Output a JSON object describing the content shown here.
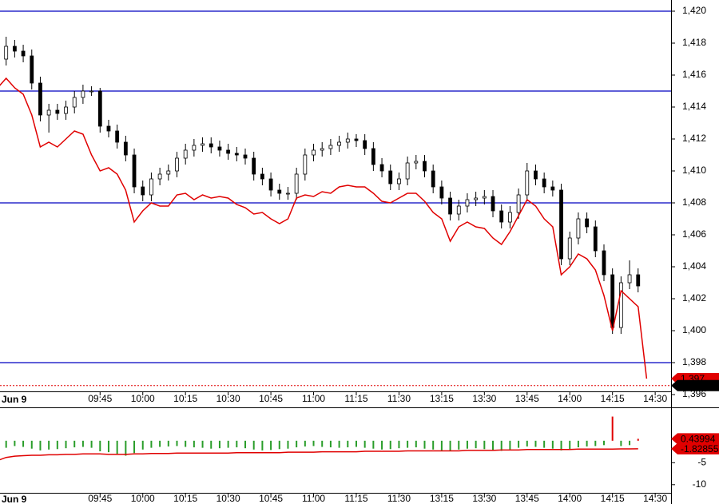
{
  "chart_data": [
    {
      "type": "candlestick",
      "date": "Jun 9",
      "categories": [
        null,
        null,
        null,
        null,
        null,
        null,
        null,
        null,
        null,
        null,
        null,
        null,
        "09:45",
        null,
        null,
        null,
        null,
        "10:00",
        null,
        null,
        null,
        null,
        "10:15",
        null,
        null,
        null,
        null,
        "10:30",
        null,
        null,
        null,
        null,
        "10:45",
        null,
        null,
        null,
        null,
        "11:00",
        null,
        null,
        null,
        null,
        "11:15",
        null,
        null,
        null,
        null,
        "11:30",
        null,
        null,
        null,
        null,
        "13:15",
        null,
        null,
        null,
        null,
        "13:30",
        null,
        null,
        null,
        null,
        "13:45",
        null,
        null,
        null,
        null,
        "14:00",
        null,
        null,
        null,
        null,
        "14:15",
        null,
        null,
        null,
        null,
        "14:30"
      ],
      "open": [
        1416.8,
        1417.0,
        1417.8,
        1417.5,
        1417.2,
        1415.5,
        1413.5,
        1413.8,
        1413.6,
        1414.0,
        1414.6,
        1415.0,
        1415.0,
        1412.8,
        1412.5,
        1411.8,
        1411.0,
        1409.0,
        1408.5,
        1409.5,
        1409.8,
        1410.0,
        1410.8,
        1411.3,
        1411.6,
        1411.7,
        1411.5,
        1411.3,
        1411.1,
        1411.0,
        1410.8,
        1409.8,
        1409.5,
        1408.8,
        1408.6,
        1408.6,
        1409.8,
        1411.0,
        1411.3,
        1411.4,
        1411.6,
        1411.8,
        1412.0,
        1411.9,
        1411.4,
        1410.4,
        1410.0,
        1409.2,
        1409.5,
        1410.5,
        1410.6,
        1410.0,
        1409.0,
        1408.3,
        1407.3,
        1407.8,
        1408.2,
        1408.3,
        1408.4,
        1407.5,
        1406.8,
        1407.4,
        1408.5,
        1410.0,
        1409.5,
        1409.0,
        1408.8,
        1404.5,
        1405.8,
        1407.0,
        1406.5,
        1405.0,
        1403.5,
        1400.2,
        1403.0,
        1403.5,
        null,
        null
      ],
      "high": [
        1417.6,
        1418.4,
        1418.2,
        1417.9,
        1417.6,
        1415.9,
        1414.2,
        1414.2,
        1414.4,
        1415.0,
        1415.4,
        1415.3,
        1415.2,
        1413.2,
        1412.9,
        1412.2,
        1411.4,
        1409.4,
        1409.9,
        1410.2,
        1410.4,
        1411.2,
        1411.7,
        1412.0,
        1412.1,
        1412.1,
        1411.9,
        1411.7,
        1411.5,
        1411.4,
        1411.2,
        1410.2,
        1409.9,
        1409.2,
        1409.0,
        1410.2,
        1411.4,
        1411.7,
        1411.8,
        1412.0,
        1412.2,
        1412.4,
        1412.3,
        1412.3,
        1411.8,
        1410.8,
        1410.4,
        1409.9,
        1410.9,
        1411.0,
        1411.0,
        1410.4,
        1409.4,
        1408.7,
        1408.2,
        1408.6,
        1408.7,
        1408.8,
        1408.8,
        1407.9,
        1407.8,
        1408.9,
        1410.5,
        1410.4,
        1409.9,
        1409.4,
        1409.2,
        1406.2,
        1407.4,
        1407.4,
        1406.9,
        1405.4,
        1403.9,
        1403.4,
        1404.4,
        1403.9,
        null,
        null
      ],
      "low": [
        1416.4,
        1416.6,
        1417.1,
        1416.8,
        1415.1,
        1413.1,
        1412.4,
        1413.2,
        1413.2,
        1413.6,
        1414.2,
        1414.7,
        1412.4,
        1412.1,
        1411.4,
        1410.6,
        1408.6,
        1408.1,
        1408.1,
        1409.1,
        1409.4,
        1409.6,
        1410.4,
        1410.9,
        1411.2,
        1411.1,
        1410.9,
        1410.7,
        1410.6,
        1410.4,
        1409.4,
        1409.1,
        1408.4,
        1408.2,
        1408.2,
        1408.2,
        1409.4,
        1410.6,
        1410.9,
        1411.0,
        1411.2,
        1411.4,
        1411.5,
        1411.0,
        1410.0,
        1409.6,
        1408.8,
        1408.8,
        1409.1,
        1410.1,
        1409.6,
        1408.6,
        1407.9,
        1406.9,
        1406.9,
        1407.4,
        1407.8,
        1407.9,
        1407.1,
        1406.4,
        1406.4,
        1407.0,
        1408.1,
        1409.1,
        1408.6,
        1408.4,
        1404.1,
        1404.1,
        1405.4,
        1406.1,
        1404.6,
        1403.1,
        1399.8,
        1399.8,
        1402.6,
        1402.4,
        null,
        null
      ],
      "close": [
        1417.0,
        1417.8,
        1417.5,
        1417.2,
        1415.5,
        1413.5,
        1413.8,
        1413.6,
        1414.0,
        1414.6,
        1415.0,
        1415.0,
        1412.8,
        1412.5,
        1411.8,
        1411.0,
        1409.0,
        1408.5,
        1409.5,
        1409.8,
        1410.0,
        1410.8,
        1411.3,
        1411.6,
        1411.7,
        1411.5,
        1411.3,
        1411.1,
        1411.0,
        1410.8,
        1409.8,
        1409.5,
        1408.8,
        1408.6,
        1408.6,
        1409.8,
        1411.0,
        1411.3,
        1411.4,
        1411.6,
        1411.8,
        1412.0,
        1411.9,
        1411.4,
        1410.4,
        1410.0,
        1409.2,
        1409.5,
        1410.5,
        1410.6,
        1410.0,
        1409.0,
        1408.3,
        1407.3,
        1407.8,
        1408.2,
        1408.3,
        1408.4,
        1407.5,
        1406.8,
        1407.4,
        1408.5,
        1410.0,
        1409.5,
        1409.0,
        1408.8,
        1404.5,
        1405.8,
        1407.0,
        1406.5,
        1405.0,
        1403.5,
        1400.2,
        1403.0,
        1403.5,
        1402.8,
        null,
        null
      ],
      "up_color": "#ffffff",
      "down_color": "#000000",
      "outline_color": "#000000",
      "series": [
        {
          "color": "#e00000",
          "values": [
            1415.2,
            1415.8,
            1415.2,
            1414.8,
            1413.5,
            1411.5,
            1411.8,
            1411.5,
            1412.0,
            1412.5,
            1412.3,
            1411.0,
            1410.0,
            1410.2,
            1409.8,
            1408.8,
            1406.8,
            1407.5,
            1408.0,
            1407.8,
            1407.8,
            1408.5,
            1408.6,
            1408.2,
            1408.5,
            1408.3,
            1408.4,
            1408.3,
            1407.9,
            1407.7,
            1407.3,
            1407.4,
            1407.0,
            1406.7,
            1407.0,
            1408.3,
            1408.5,
            1408.4,
            1408.7,
            1408.6,
            1409.0,
            1409.1,
            1409.0,
            1409.0,
            1408.6,
            1408.1,
            1408.0,
            1408.3,
            1408.6,
            1408.6,
            1408.1,
            1407.4,
            1407.0,
            1405.6,
            1406.5,
            1406.8,
            1406.5,
            1406.4,
            1405.8,
            1405.4,
            1406.2,
            1407.2,
            1408.2,
            1407.8,
            1407.0,
            1406.5,
            1403.5,
            1404.0,
            1404.8,
            1404.5,
            1403.8,
            1402.2,
            1400.0,
            1402.5,
            1402.0,
            1401.5,
            1397.0,
            null
          ]
        }
      ],
      "hlines": [
        1420,
        1415,
        1408,
        1398
      ],
      "hline_color": "#0000c0",
      "tags": [
        {
          "value": 1397,
          "label": "1,397",
          "color": "#e00000"
        },
        {
          "value": 1396.56,
          "label": "1,396.56",
          "color": "#000000"
        }
      ],
      "ylim": [
        1396.2,
        1420.7
      ],
      "yticks": [
        {
          "value": 1420,
          "label": "1,420"
        },
        {
          "value": 1418,
          "label": "1,418"
        },
        {
          "value": 1416,
          "label": "1,416"
        },
        {
          "value": 1414,
          "label": "1,414"
        },
        {
          "value": 1412,
          "label": "1,412"
        },
        {
          "value": 1410,
          "label": "1,410"
        },
        {
          "value": 1408,
          "label": "1,408"
        },
        {
          "value": 1406,
          "label": "1,406"
        },
        {
          "value": 1404,
          "label": "1,404"
        },
        {
          "value": 1402,
          "label": "1,402"
        },
        {
          "value": 1400,
          "label": "1,400"
        },
        {
          "value": 1398,
          "label": "1,398"
        },
        {
          "value": 1396,
          "label": "1,396"
        }
      ]
    },
    {
      "type": "bar",
      "values": [
        -1.5,
        -1.6,
        -1.2,
        -1.4,
        -1.8,
        -2.2,
        -2.0,
        -1.9,
        -1.7,
        -1.5,
        -1.4,
        -1.6,
        -2.4,
        -2.6,
        -3.0,
        -3.4,
        -2.8,
        -2.0,
        -1.6,
        -1.4,
        -1.3,
        -1.2,
        -1.4,
        -1.5,
        -1.6,
        -1.8,
        -1.7,
        -1.6,
        -1.5,
        -1.7,
        -2.0,
        -2.2,
        -2.1,
        -1.9,
        -1.8,
        -1.5,
        -1.3,
        -1.2,
        -1.4,
        -1.5,
        -1.6,
        -1.5,
        -1.4,
        -1.6,
        -1.8,
        -2.0,
        -1.9,
        -1.7,
        -1.6,
        -1.5,
        -1.8,
        -2.0,
        -2.2,
        -2.4,
        -2.0,
        -1.8,
        -1.7,
        -1.9,
        -2.1,
        -2.3,
        -2.0,
        -1.6,
        -1.3,
        -1.4,
        -1.6,
        -1.8,
        -2.2,
        -1.9,
        -1.5,
        -1.3,
        -1.2,
        -1.0,
        5.5,
        -1.2,
        -1.0,
        0.43994,
        null,
        null
      ],
      "positive_color": "#e00000",
      "negative_color": "#2a9d2a",
      "series": [
        {
          "color": "#e00000",
          "values": [
            -4.5,
            -3.8,
            -3.5,
            -3.4,
            -3.3,
            -3.3,
            -3.2,
            -3.2,
            -3.1,
            -3.1,
            -3.0,
            -3.0,
            -3.0,
            -3.1,
            -3.1,
            -3.1,
            -3.0,
            -3.0,
            -2.9,
            -2.9,
            -2.9,
            -2.8,
            -2.8,
            -2.8,
            -2.8,
            -2.8,
            -2.8,
            -2.8,
            -2.7,
            -2.7,
            -2.7,
            -2.7,
            -2.7,
            -2.7,
            -2.6,
            -2.6,
            -2.6,
            -2.6,
            -2.5,
            -2.5,
            -2.5,
            -2.5,
            -2.5,
            -2.4,
            -2.4,
            -2.4,
            -2.4,
            -2.4,
            -2.3,
            -2.3,
            -2.3,
            -2.3,
            -2.3,
            -2.3,
            -2.3,
            -2.2,
            -2.2,
            -2.2,
            -2.2,
            -2.1,
            -2.1,
            -2.1,
            -2.0,
            -2.0,
            -2.0,
            -2.0,
            -2.0,
            -2.0,
            -1.9,
            -1.9,
            -1.9,
            -1.9,
            -1.9,
            -1.85,
            -1.85,
            -1.82855,
            null,
            null
          ]
        }
      ],
      "tags": [
        {
          "value": 0.43994,
          "label": "0.43994",
          "color": "#e00000"
        },
        {
          "value": -1.82855,
          "label": "-1.82855",
          "color": "#e00000"
        }
      ],
      "ylim": [
        -11.85,
        7.6
      ],
      "yticks": [
        -5,
        -10
      ]
    }
  ]
}
